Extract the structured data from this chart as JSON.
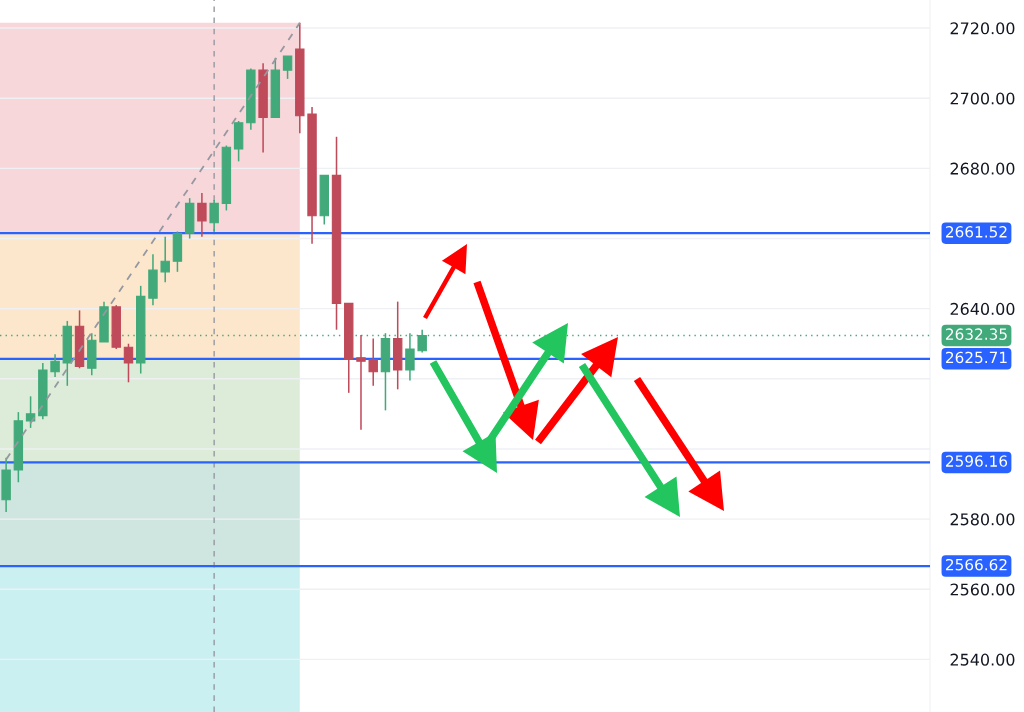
{
  "chart_data": {
    "type": "candlestick",
    "categories": [
      null,
      null,
      null,
      null,
      null,
      null,
      null,
      null,
      null,
      null,
      null,
      null,
      null,
      null,
      null,
      null,
      null,
      null,
      null,
      null,
      null,
      null,
      null,
      null,
      null,
      null,
      null,
      null,
      null,
      null,
      null,
      null,
      null,
      null,
      null,
      null,
      null,
      null,
      null,
      null,
      null,
      null,
      null,
      null,
      null,
      null,
      null,
      null,
      null,
      null,
      null,
      null,
      null,
      null,
      null,
      null,
      null,
      null,
      null,
      null,
      null,
      null,
      null,
      null,
      null,
      null,
      null,
      null,
      null,
      null,
      null,
      null,
      null,
      null,
      null,
      null
    ],
    "ohlc": [
      [
        2585.5,
        2597.5,
        2582,
        2594
      ],
      [
        2594,
        2610.5,
        2590.5,
        2608
      ],
      [
        2608,
        2615,
        2606,
        2610
      ],
      [
        2609.5,
        2624.5,
        2608.5,
        2622.5
      ],
      [
        2622,
        2627,
        2620.5,
        2625
      ],
      [
        2624.5,
        2636.5,
        2618,
        2635
      ],
      [
        2635,
        2639.5,
        2623,
        2623.5
      ],
      [
        2623,
        2633,
        2621,
        2631
      ],
      [
        2630.5,
        2642,
        2630.5,
        2640.5
      ],
      [
        2640.5,
        2641,
        2628.5,
        2629
      ],
      [
        2629,
        2630,
        2619,
        2624.5
      ],
      [
        2624.5,
        2646.5,
        2621.5,
        2643.5
      ],
      [
        2643,
        2655.5,
        2641,
        2651
      ],
      [
        2650.5,
        2660.5,
        2647.5,
        2653.5
      ],
      [
        2653.5,
        2662,
        2650.5,
        2661.5
      ],
      [
        2661.5,
        2671.5,
        2660,
        2670
      ],
      [
        2670,
        2673,
        2660.5,
        2665
      ],
      [
        2664.5,
        2671,
        2662,
        2670
      ],
      [
        2670,
        2686.5,
        2668,
        2686
      ],
      [
        2685.5,
        2693.5,
        2682,
        2693
      ],
      [
        2693,
        2708.5,
        2691,
        2708
      ],
      [
        2708,
        2710,
        2684.5,
        2694.5
      ],
      [
        2694.5,
        2711.5,
        2694.5,
        2708
      ],
      [
        2708,
        2712,
        2705.5,
        2712
      ],
      [
        2714,
        2721.5,
        2690,
        2695
      ],
      [
        2695.5,
        2697.5,
        2658.5,
        2666.5
      ],
      [
        2666.5,
        2678,
        2664,
        2678
      ],
      [
        2678,
        2689,
        2634,
        2641.5
      ],
      [
        2641.5,
        2641.5,
        2616,
        2625.5
      ],
      [
        2626,
        2632.5,
        2605.5,
        2625
      ],
      [
        2625.5,
        2631.5,
        2618,
        2622
      ],
      [
        2622,
        2633,
        2611,
        2631.5
      ],
      [
        2631.5,
        2642,
        2617,
        2622.5
      ],
      [
        2622.5,
        2633,
        2619.5,
        2628.5
      ],
      [
        2628,
        2634,
        2627.5,
        2632.35
      ],
      null,
      null,
      null,
      null,
      null,
      null,
      null,
      null,
      null,
      null,
      null,
      null,
      null,
      null,
      null,
      null,
      null,
      null,
      null,
      null,
      null,
      null,
      null,
      null,
      null,
      null,
      null,
      null,
      null,
      null,
      null,
      null,
      null,
      null,
      null,
      null,
      null,
      null,
      null,
      null,
      null
    ],
    "colors": [
      "#42a97a",
      "#42a97a",
      "#42a97a",
      "#42a97a",
      "#42a97a",
      "#42a97a",
      "#bf4a5a",
      "#42a97a",
      "#42a97a",
      "#bf4a5a",
      "#bf4a5a",
      "#42a97a",
      "#42a97a",
      "#42a97a",
      "#42a97a",
      "#42a97a",
      "#bf4a5a",
      "#42a97a",
      "#42a97a",
      "#42a97a",
      "#42a97a",
      "#bf4a5a",
      "#42a97a",
      "#42a97a",
      "#bf4a5a",
      "#bf4a5a",
      "#42a97a",
      "#bf4a5a",
      "#bf4a5a",
      "#bf4a5a",
      "#bf4a5a",
      "#42a97a",
      "#bf4a5a",
      "#42a97a",
      "#42a97a",
      null,
      null,
      null,
      null,
      null,
      null,
      null,
      null,
      null,
      null,
      null,
      null,
      null,
      null,
      null,
      null,
      null,
      null,
      null,
      null,
      null,
      null,
      null,
      null,
      null,
      null,
      null,
      null,
      null,
      null,
      null,
      null,
      null,
      null,
      null,
      null,
      null,
      null,
      null,
      null,
      null
    ],
    "series": [
      {
        "type": "line",
        "color": "#9598a1",
        "line_style": "dashed",
        "values": [
          2597.0,
          2602.2,
          2607.4,
          2612.5,
          2617.7,
          2622.9,
          2628.1,
          2633.3,
          2638.5,
          2643.6,
          2648.8,
          2654.0,
          2659.2,
          2664.4,
          2669.6,
          2674.7,
          2679.9,
          2685.1,
          2690.3,
          2695.5,
          2700.7,
          2705.8,
          2711.0,
          2716.2,
          2721.5,
          null,
          null,
          null,
          null,
          null,
          null,
          null,
          null,
          null,
          null,
          null,
          null,
          null,
          null,
          null,
          null,
          null,
          null,
          null,
          null,
          null,
          null,
          null,
          null,
          null,
          null,
          null,
          null,
          null,
          null,
          null,
          null,
          null,
          null,
          null,
          null,
          null,
          null,
          null,
          null,
          null,
          null,
          null,
          null,
          null,
          null,
          null,
          null,
          null,
          null,
          null
        ]
      }
    ],
    "ylim": [
      2525,
      2728
    ],
    "yticks": [
      {
        "value": 2540,
        "label": "2540.00"
      },
      {
        "value": 2560,
        "label": "2560.00"
      },
      {
        "value": 2580,
        "label": "2580.00"
      },
      {
        "value": 2600,
        "label": null
      },
      {
        "value": 2620,
        "label": null
      },
      {
        "value": 2640,
        "label": "2640.00"
      },
      {
        "value": 2660,
        "label": null
      },
      {
        "value": 2680,
        "label": "2680.00"
      },
      {
        "value": 2700,
        "label": "2700.00"
      },
      {
        "value": 2720,
        "label": "2720.00"
      }
    ],
    "grid": "y",
    "tick_labels": "y",
    "bands": [
      {
        "axis": "y",
        "from": 2661.52,
        "to": 2721.5,
        "color": "#f8d7da"
      },
      {
        "axis": "y",
        "from": 2625.71,
        "to": 2661.52,
        "color": "#fde7cc"
      },
      {
        "axis": "y",
        "from": 2596.16,
        "to": 2625.71,
        "color": "#dcecd8"
      },
      {
        "axis": "y",
        "from": 2566.62,
        "to": 2596.16,
        "color": "#cfe6e0"
      },
      {
        "axis": "y",
        "from": 2525,
        "to": 2566.62,
        "color": "#cbf0f2"
      }
    ],
    "ref_lines": [
      {
        "axis": "y",
        "value": 2661.52,
        "label": "2661.52",
        "color": "#2962ff",
        "line_style": "solid"
      },
      {
        "axis": "y",
        "value": 2625.71,
        "label": "2625.71",
        "color": "#2962ff",
        "line_style": "solid"
      },
      {
        "axis": "y",
        "value": 2596.16,
        "label": "2596.16",
        "color": "#2962ff",
        "line_style": "solid"
      },
      {
        "axis": "y",
        "value": 2566.62,
        "label": "2566.62",
        "color": "#2962ff",
        "line_style": "solid"
      },
      {
        "axis": "y",
        "value": 2632.35,
        "label": "2632.35",
        "color": "#42a97a",
        "line_style": "dotted"
      }
    ]
  }
}
